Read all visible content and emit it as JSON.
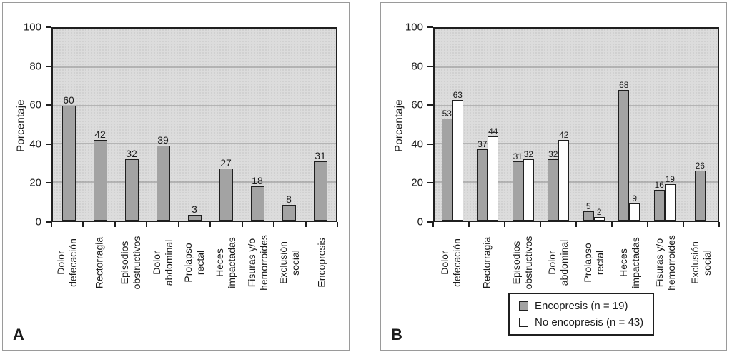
{
  "colors": {
    "bar_gray": "#a3a3a3",
    "bar_white": "#ffffff",
    "bar_border": "#1f1f1f",
    "plot_background": "#dcdcdc",
    "plot_dot_pattern": "#c6c6c6",
    "gridline": "#8d8d8d",
    "axis": "#1f1f1f",
    "panel_border": "#9a9a9a",
    "text": "#1c1c1c"
  },
  "chart_data": [
    {
      "type": "bar",
      "panel_label": "A",
      "title": "",
      "xlabel": "",
      "ylabel": "Porcentaje",
      "ylim": [
        0,
        100
      ],
      "yticks": [
        0,
        20,
        40,
        60,
        80,
        100
      ],
      "grid": "horizontal",
      "categories": [
        "Dolor\ndefecación",
        "Rectorragia",
        "Episodios\nobstructivos",
        "Dolor\nabdominal",
        "Prolapso\nrectal",
        "Heces\nimpactadas",
        "Fisuras y/o\nhemorroides",
        "Exclusión\nsocial",
        "Encopresis"
      ],
      "values": [
        60,
        42,
        32,
        39,
        3,
        27,
        18,
        8,
        31
      ]
    },
    {
      "type": "bar",
      "panel_label": "B",
      "title": "",
      "xlabel": "",
      "ylabel": "Porcentaje",
      "ylim": [
        0,
        100
      ],
      "yticks": [
        0,
        20,
        40,
        60,
        80,
        100
      ],
      "grid": "horizontal",
      "legend_position": "bottom",
      "categories": [
        "Dolor\ndefecación",
        "Rectorragia",
        "Episodios\nobstructivos",
        "Dolor\nabdominal",
        "Prolapso\nrectal",
        "Heces\nimpactadas",
        "Fisuras y/o\nhemorroides",
        "Exclusión\nsocial"
      ],
      "series": [
        {
          "name": "Encopresis (n = 19)",
          "color_key": "gray",
          "values": [
            53,
            37,
            31,
            32,
            5,
            68,
            16,
            26
          ]
        },
        {
          "name": "No encopresis (n = 43)",
          "color_key": "white",
          "values": [
            63,
            44,
            32,
            42,
            2,
            9,
            19,
            null
          ]
        }
      ]
    }
  ]
}
